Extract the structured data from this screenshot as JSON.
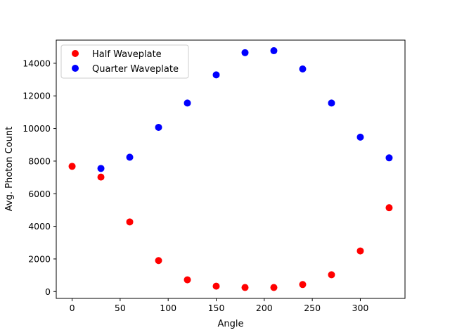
{
  "chart_data": {
    "type": "scatter",
    "title": "",
    "xlabel": "Angle",
    "ylabel": "Avg. Photon Count",
    "xlim": [
      -16.5,
      346.5
    ],
    "ylim": [
      -420,
      15420
    ],
    "xticks": [
      0,
      50,
      100,
      150,
      200,
      250,
      300
    ],
    "yticks": [
      0,
      2000,
      4000,
      6000,
      8000,
      10000,
      12000,
      14000
    ],
    "grid": false,
    "legend_position": "upper left",
    "series": [
      {
        "name": "Half Waveplate",
        "color": "#ff0000",
        "x": [
          0,
          30,
          60,
          90,
          120,
          150,
          180,
          210,
          240,
          270,
          300,
          330
        ],
        "y": [
          7680,
          7020,
          4270,
          1900,
          720,
          330,
          250,
          250,
          430,
          1030,
          2490,
          5140
        ]
      },
      {
        "name": "Quarter Waveplate",
        "color": "#0000ff",
        "x": [
          30,
          60,
          90,
          120,
          150,
          180,
          210,
          240,
          270,
          300,
          330
        ],
        "y": [
          7550,
          8240,
          10070,
          11560,
          13290,
          14650,
          14770,
          13650,
          11560,
          9470,
          8200
        ]
      }
    ]
  }
}
